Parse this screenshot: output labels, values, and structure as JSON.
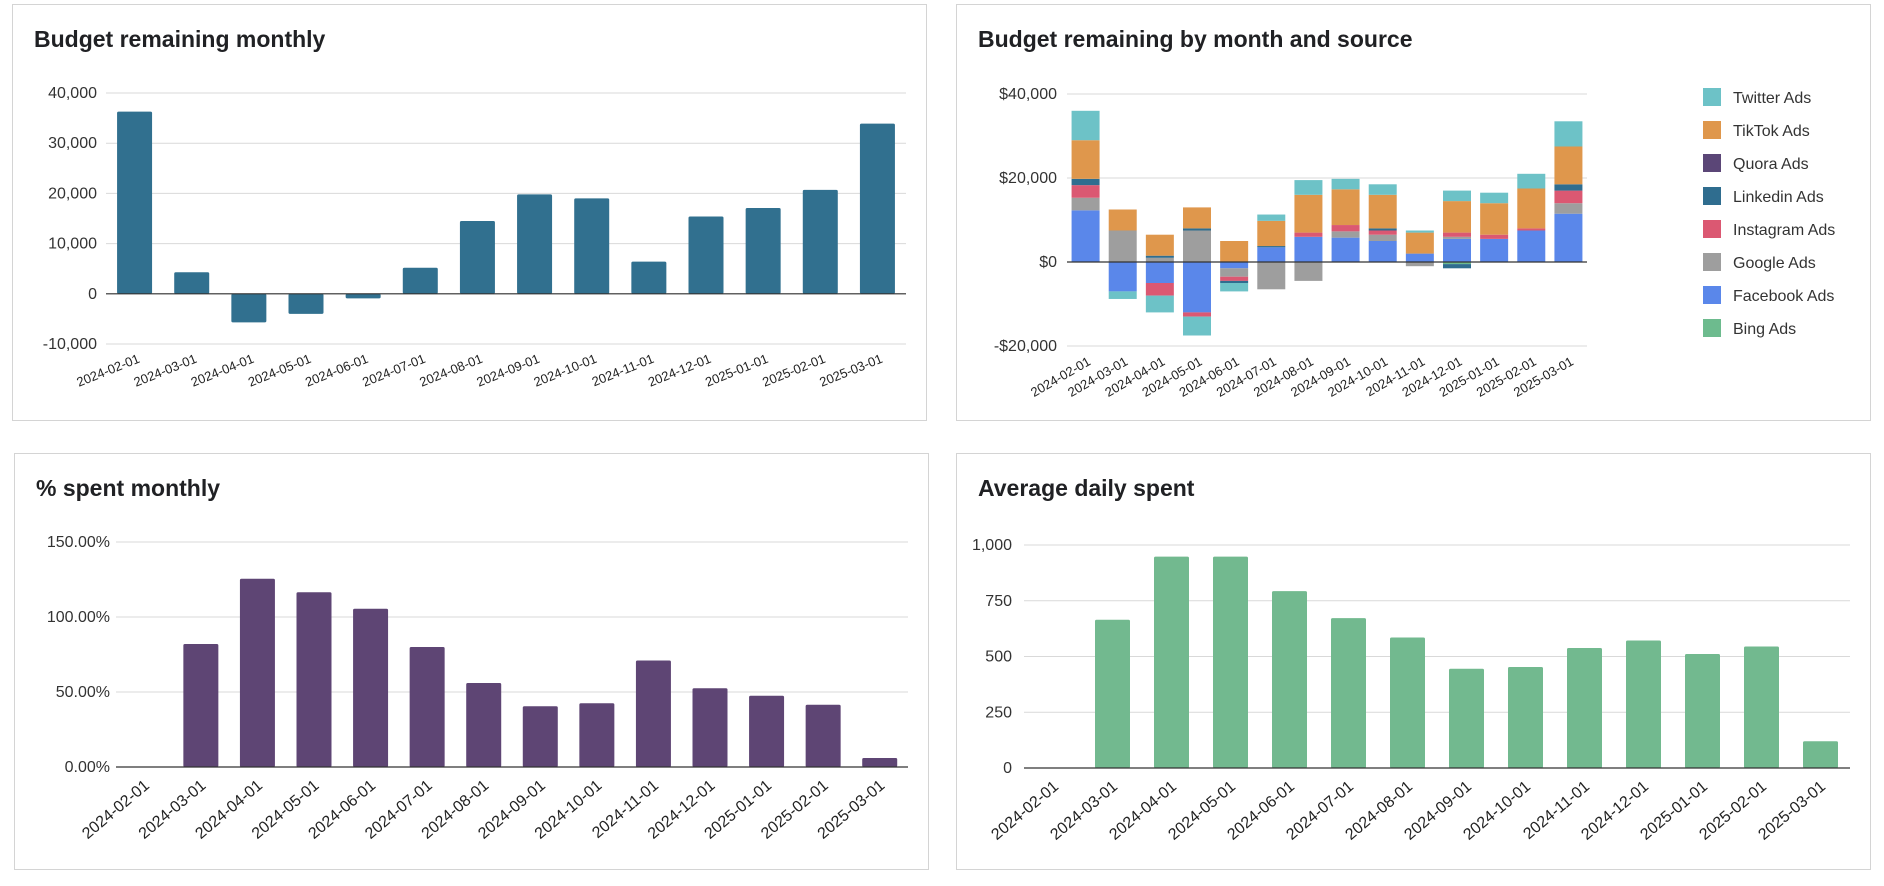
{
  "chart_data": [
    {
      "type": "bar",
      "title": "Budget remaining monthly",
      "categories": [
        "2024-02-01",
        "2024-03-01",
        "2024-04-01",
        "2024-05-01",
        "2024-06-01",
        "2024-07-01",
        "2024-08-01",
        "2024-09-01",
        "2024-10-01",
        "2024-11-01",
        "2024-12-01",
        "2025-01-01",
        "2025-02-01",
        "2025-03-01"
      ],
      "values": [
        36300,
        4300,
        -5700,
        -4000,
        -900,
        5200,
        14500,
        19800,
        19000,
        6400,
        15400,
        17100,
        20700,
        33900
      ],
      "ylim": [
        -10000,
        40000
      ],
      "yticks": [
        -10000,
        0,
        10000,
        20000,
        30000,
        40000
      ],
      "ytick_labels": [
        "-10,000",
        "0",
        "10,000",
        "20,000",
        "30,000",
        "40,000"
      ],
      "color": "#31708f",
      "xlabel": "",
      "ylabel": "",
      "grid": true
    },
    {
      "type": "bar",
      "stacked": true,
      "title": "Budget remaining by month and source",
      "categories": [
        "2024-02-01",
        "2024-03-01",
        "2024-04-01",
        "2024-05-01",
        "2024-06-01",
        "2024-07-01",
        "2024-08-01",
        "2024-09-01",
        "2024-10-01",
        "2024-11-01",
        "2024-12-01",
        "2025-01-01",
        "2025-02-01",
        "2025-03-01"
      ],
      "ylim": [
        -20000,
        40000
      ],
      "yticks": [
        -20000,
        0,
        20000,
        40000
      ],
      "ytick_labels": [
        "-$20,000",
        "$0",
        "$20,000",
        "$40,000"
      ],
      "legend_position": "right",
      "series": [
        {
          "name": "Bing Ads",
          "color": "#6dbb8e",
          "values": [
            0,
            0,
            0,
            0,
            0,
            0,
            0,
            0,
            0,
            0,
            -500,
            0,
            0,
            0
          ]
        },
        {
          "name": "Facebook Ads",
          "color": "#5a87ea",
          "values": [
            12300,
            -7000,
            -5000,
            -12000,
            -1500,
            3500,
            6000,
            5800,
            5000,
            2000,
            5500,
            5500,
            7500,
            11500
          ]
        },
        {
          "name": "Google Ads",
          "color": "#9e9e9e",
          "values": [
            3000,
            7500,
            1000,
            7500,
            -2000,
            -6500,
            -4500,
            1500,
            1500,
            -1000,
            500,
            0,
            0,
            2500
          ]
        },
        {
          "name": "Instagram Ads",
          "color": "#db5872",
          "values": [
            3000,
            0,
            -3000,
            -1000,
            -1000,
            0,
            1000,
            1500,
            1000,
            0,
            1000,
            1000,
            500,
            3000
          ]
        },
        {
          "name": "Linkedin Ads",
          "color": "#2f6d8f",
          "values": [
            1500,
            0,
            500,
            500,
            -500,
            300,
            0,
            0,
            500,
            0,
            -1000,
            0,
            0,
            1500
          ]
        },
        {
          "name": "Quora Ads",
          "color": "#5b4677",
          "values": [
            0,
            0,
            0,
            0,
            0,
            0,
            0,
            0,
            0,
            0,
            0,
            0,
            0,
            0
          ]
        },
        {
          "name": "TikTok Ads",
          "color": "#df974c",
          "values": [
            9200,
            5000,
            5000,
            5000,
            5000,
            6000,
            9000,
            8500,
            8000,
            5000,
            7500,
            7500,
            9500,
            9000
          ]
        },
        {
          "name": "Twitter Ads",
          "color": "#6dc2c7",
          "values": [
            7000,
            -1800,
            -4000,
            -4500,
            -2000,
            1500,
            3500,
            2500,
            2500,
            500,
            2500,
            2500,
            3500,
            6000
          ]
        }
      ],
      "xlabel": "",
      "ylabel": "",
      "grid": true
    },
    {
      "type": "bar",
      "title": "% spent monthly",
      "categories": [
        "2024-02-01",
        "2024-03-01",
        "2024-04-01",
        "2024-05-01",
        "2024-06-01",
        "2024-07-01",
        "2024-08-01",
        "2024-09-01",
        "2024-10-01",
        "2024-11-01",
        "2024-12-01",
        "2025-01-01",
        "2025-02-01",
        "2025-03-01"
      ],
      "values": [
        0,
        82,
        125.5,
        116.5,
        105.5,
        80,
        56,
        40.5,
        42.5,
        71,
        52.5,
        47.5,
        41.5,
        6
      ],
      "ylim": [
        0,
        150
      ],
      "yticks": [
        0,
        50,
        100,
        150
      ],
      "ytick_labels": [
        "0.00%",
        "50.00%",
        "100.00%",
        "150.00%"
      ],
      "color": "#5e4574",
      "xlabel": "",
      "ylabel": "",
      "grid": true
    },
    {
      "type": "bar",
      "title": "Average daily spent",
      "categories": [
        "2024-02-01",
        "2024-03-01",
        "2024-04-01",
        "2024-05-01",
        "2024-06-01",
        "2024-07-01",
        "2024-08-01",
        "2024-09-01",
        "2024-10-01",
        "2024-11-01",
        "2024-12-01",
        "2025-01-01",
        "2025-02-01",
        "2025-03-01"
      ],
      "values": [
        0,
        665,
        948,
        948,
        793,
        672,
        585,
        445,
        453,
        538,
        572,
        511,
        545,
        120
      ],
      "ylim": [
        0,
        1000
      ],
      "yticks": [
        0,
        250,
        500,
        750,
        1000
      ],
      "ytick_labels": [
        "0",
        "250",
        "500",
        "750",
        "1,000"
      ],
      "color": "#72b98f",
      "xlabel": "",
      "ylabel": "",
      "grid": true
    }
  ]
}
